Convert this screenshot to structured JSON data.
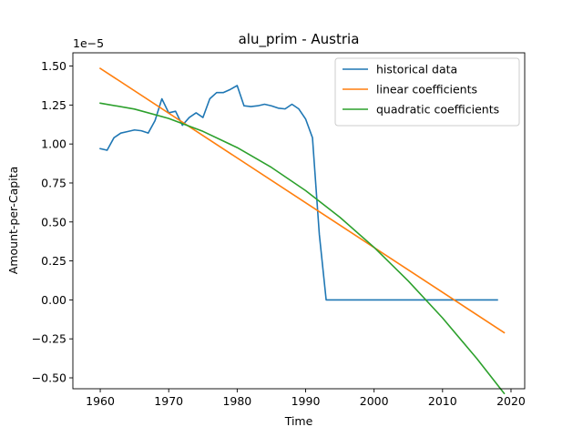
{
  "chart_data": {
    "type": "line",
    "title": "alu_prim - Austria",
    "xlabel": "Time",
    "ylabel": "Amount-per-Capita",
    "offset_label": "1e−5",
    "xlim": [
      1956,
      2022
    ],
    "ylim": [
      -0.57,
      1.585
    ],
    "x_ticks": [
      1960,
      1970,
      1980,
      1990,
      2000,
      2010,
      2020
    ],
    "x_tick_labels": [
      "1960",
      "1970",
      "1980",
      "1990",
      "2000",
      "2010",
      "2020"
    ],
    "y_ticks": [
      -0.5,
      -0.25,
      0,
      0.25,
      0.5,
      0.75,
      1.0,
      1.25,
      1.5
    ],
    "y_tick_labels": [
      "−0.50",
      "−0.25",
      "0.00",
      "0.25",
      "0.50",
      "0.75",
      "1.00",
      "1.25",
      "1.50"
    ],
    "grid": false,
    "legend_position": "top-right",
    "series": [
      {
        "name": "historical data",
        "color": "#1f77b4",
        "x": [
          1960,
          1961,
          1962,
          1963,
          1964,
          1965,
          1966,
          1967,
          1968,
          1969,
          1970,
          1971,
          1972,
          1973,
          1974,
          1975,
          1976,
          1977,
          1978,
          1979,
          1980,
          1981,
          1982,
          1983,
          1984,
          1985,
          1986,
          1987,
          1988,
          1989,
          1990,
          1991,
          1992,
          1993,
          1994,
          1995,
          1996,
          1997,
          1998,
          1999,
          2000,
          2001,
          2002,
          2003,
          2004,
          2005,
          2006,
          2007,
          2008,
          2009,
          2010,
          2011,
          2012,
          2013,
          2014,
          2015,
          2016,
          2017,
          2018
        ],
        "y": [
          0.97,
          0.96,
          1.04,
          1.07,
          1.08,
          1.09,
          1.085,
          1.07,
          1.15,
          1.29,
          1.2,
          1.21,
          1.12,
          1.17,
          1.2,
          1.17,
          1.29,
          1.33,
          1.33,
          1.35,
          1.375,
          1.245,
          1.24,
          1.245,
          1.255,
          1.245,
          1.23,
          1.225,
          1.255,
          1.225,
          1.16,
          1.04,
          0.42,
          0.0,
          0.0,
          0.0,
          0.0,
          0.0,
          0.0,
          0.0,
          0.0,
          0.0,
          0.0,
          0.0,
          0.0,
          0.0,
          0.0,
          0.0,
          0.0,
          0.0,
          0.0,
          0.0,
          0.0,
          0.0,
          0.0,
          0.0,
          0.0,
          0.0,
          0.0
        ]
      },
      {
        "name": "linear coefficients",
        "color": "#ff7f0e",
        "x": [
          1960,
          2019
        ],
        "y": [
          1.485,
          -0.21
        ]
      },
      {
        "name": "quadratic coefficients",
        "color": "#2ca02c",
        "x": [
          1960,
          1965,
          1970,
          1975,
          1980,
          1985,
          1990,
          1995,
          2000,
          2005,
          2010,
          2015,
          2019
        ],
        "y": [
          1.262,
          1.224,
          1.164,
          1.081,
          0.977,
          0.85,
          0.701,
          0.53,
          0.337,
          0.121,
          -0.116,
          -0.376,
          -0.6
        ]
      }
    ]
  }
}
